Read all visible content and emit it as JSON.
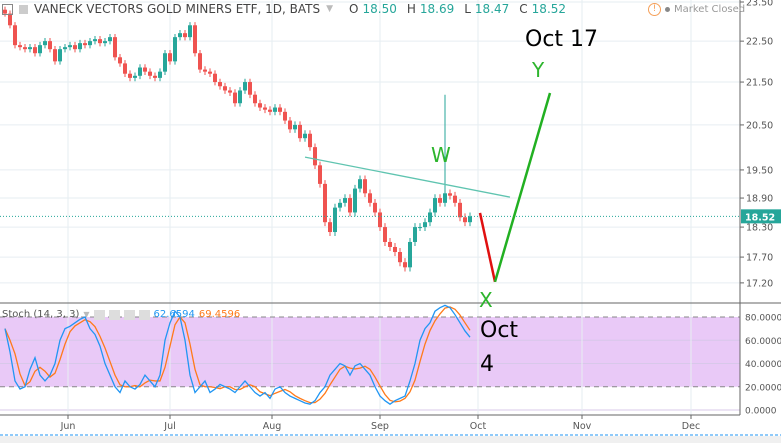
{
  "header": {
    "title": "VANECK VECTORS GOLD MINERS ETF, 1D, BATS",
    "o_label": "O",
    "o": "18.50",
    "h_label": "H",
    "h": "18.69",
    "l_label": "L",
    "l": "18.47",
    "c_label": "C",
    "c": "18.52",
    "status": "Market Closed",
    "status_icon": "warning-icon"
  },
  "stoch": {
    "label": "Stoch (14, 3, 3)",
    "k_value": "62.6594",
    "d_value": "69.4596"
  },
  "annotations": {
    "w": "W",
    "x": "X",
    "y": "Y",
    "oct17": "Oct 17",
    "oct4_line1": "Oct",
    "oct4_line2": "4"
  },
  "colors": {
    "up": "#26a69a",
    "down": "#ef5350",
    "stoch_k": "#2196f3",
    "stoch_d": "#ff7a1a",
    "band": "#e9c9f7",
    "trend": "#5fc4b0",
    "proj_down": "#e01010",
    "proj_up": "#22b022"
  },
  "chart_data": {
    "type": "candlestick",
    "title": "VANECK VECTORS GOLD MINERS ETF, 1D, BATS",
    "y_scale": "log",
    "ylim": [
      17.0,
      23.6
    ],
    "price_ticks": [
      "23.50",
      "22.50",
      "21.50",
      "20.50",
      "19.50",
      "18.90",
      "18.30",
      "17.70",
      "17.20"
    ],
    "last_price": "18.52",
    "x_ticks": [
      {
        "label": "Jun",
        "index": 12.6
      },
      {
        "label": "Jul",
        "index": 33
      },
      {
        "label": "Aug",
        "index": 53.4
      },
      {
        "label": "Sep",
        "index": 75
      },
      {
        "label": "Oct",
        "index": 94.6
      },
      {
        "label": "Nov",
        "index": 115.4
      },
      {
        "label": "Dec",
        "index": 137.2
      }
    ],
    "close": [
      23.2,
      22.9,
      22.4,
      22.35,
      22.3,
      22.35,
      22.2,
      22.4,
      22.5,
      22.3,
      22.0,
      22.3,
      22.35,
      22.4,
      22.3,
      22.45,
      22.4,
      22.5,
      22.55,
      22.45,
      22.5,
      22.6,
      22.1,
      21.95,
      21.7,
      21.6,
      21.65,
      21.85,
      21.75,
      21.65,
      21.6,
      21.75,
      22.2,
      22.0,
      22.6,
      22.7,
      22.6,
      22.9,
      22.2,
      21.8,
      21.75,
      21.7,
      21.5,
      21.4,
      21.3,
      21.25,
      21.0,
      21.3,
      21.5,
      21.2,
      21.0,
      20.9,
      20.85,
      20.8,
      20.9,
      20.8,
      20.6,
      20.4,
      20.5,
      20.2,
      20.3,
      20.0,
      19.6,
      19.2,
      18.4,
      18.2,
      18.7,
      18.8,
      18.9,
      18.6,
      19.1,
      19.3,
      19.0,
      18.8,
      18.6,
      18.3,
      18.0,
      17.9,
      17.8,
      17.6,
      17.5,
      18.0,
      18.3,
      18.3,
      18.4,
      18.6,
      18.9,
      18.8,
      19.0,
      18.95,
      18.8,
      18.5,
      18.4,
      18.52
    ],
    "high_overrides": [
      {
        "index": 88,
        "high": 21.2
      }
    ],
    "stoch_k": [
      70,
      50,
      25,
      18,
      20,
      35,
      45,
      30,
      25,
      30,
      40,
      60,
      70,
      72,
      75,
      78,
      80,
      70,
      65,
      55,
      40,
      30,
      20,
      15,
      25,
      20,
      18,
      22,
      30,
      25,
      20,
      30,
      60,
      75,
      85,
      80,
      60,
      30,
      15,
      20,
      25,
      15,
      18,
      22,
      20,
      18,
      15,
      20,
      25,
      20,
      15,
      12,
      15,
      10,
      18,
      20,
      15,
      12,
      10,
      8,
      6,
      5,
      8,
      15,
      20,
      30,
      35,
      40,
      38,
      30,
      38,
      40,
      35,
      30,
      20,
      12,
      8,
      5,
      8,
      10,
      12,
      25,
      40,
      60,
      70,
      75,
      85,
      88,
      90,
      88,
      82,
      75,
      68,
      62.66
    ],
    "stoch_levels": {
      "upper": 80,
      "lower": 20,
      "ticks": [
        "80.0000",
        "60.0000",
        "40.0000",
        "20.0000",
        "0.0000"
      ]
    },
    "drawings": {
      "trendline": [
        {
          "index": 60,
          "price": 19.78
        },
        {
          "index": 101,
          "price": 18.92
        }
      ],
      "projection_down": [
        {
          "index": 95,
          "price": 18.59
        },
        {
          "index": 98,
          "price": 17.22
        }
      ],
      "projection_up": [
        {
          "index": 98,
          "price": 17.22
        },
        {
          "index": 109,
          "price": 21.24
        }
      ]
    }
  }
}
